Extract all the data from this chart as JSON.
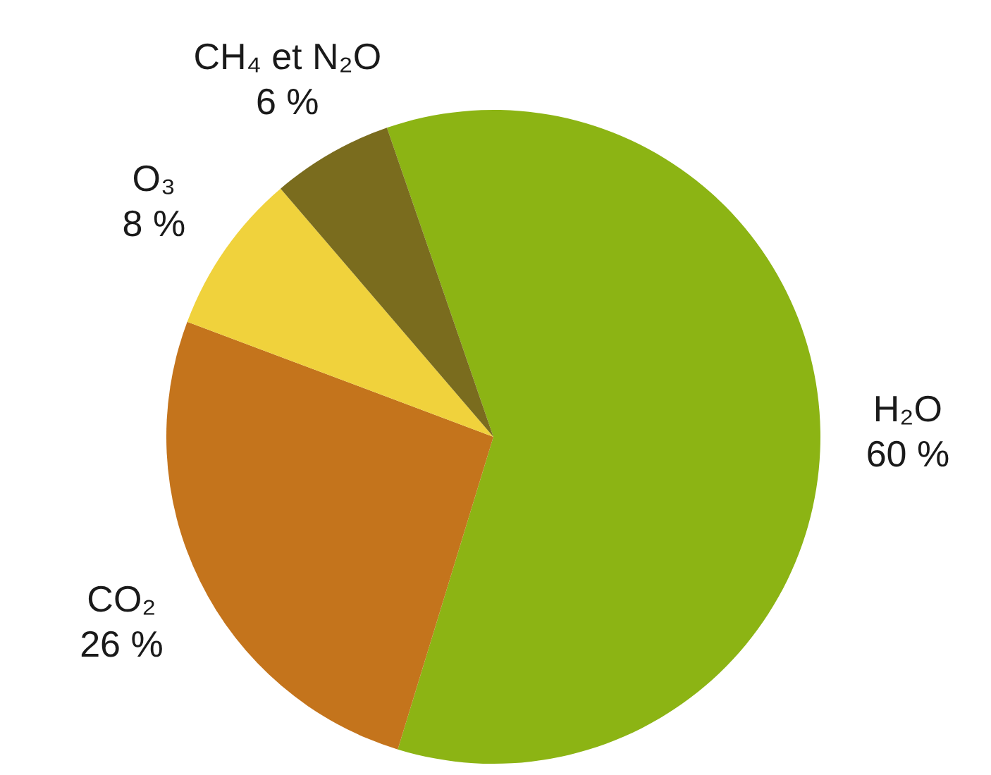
{
  "chart_data": {
    "type": "pie",
    "categories": [
      "H₂O",
      "CO₂",
      "O₃",
      "CH₄ et N₂O"
    ],
    "values": [
      60,
      26,
      8,
      6
    ],
    "colors": [
      "#8cb414",
      "#c4741c",
      "#f0d23c",
      "#7a6c1e"
    ],
    "value_labels": [
      "60 %",
      "26 %",
      "8 %",
      "6 %"
    ]
  }
}
